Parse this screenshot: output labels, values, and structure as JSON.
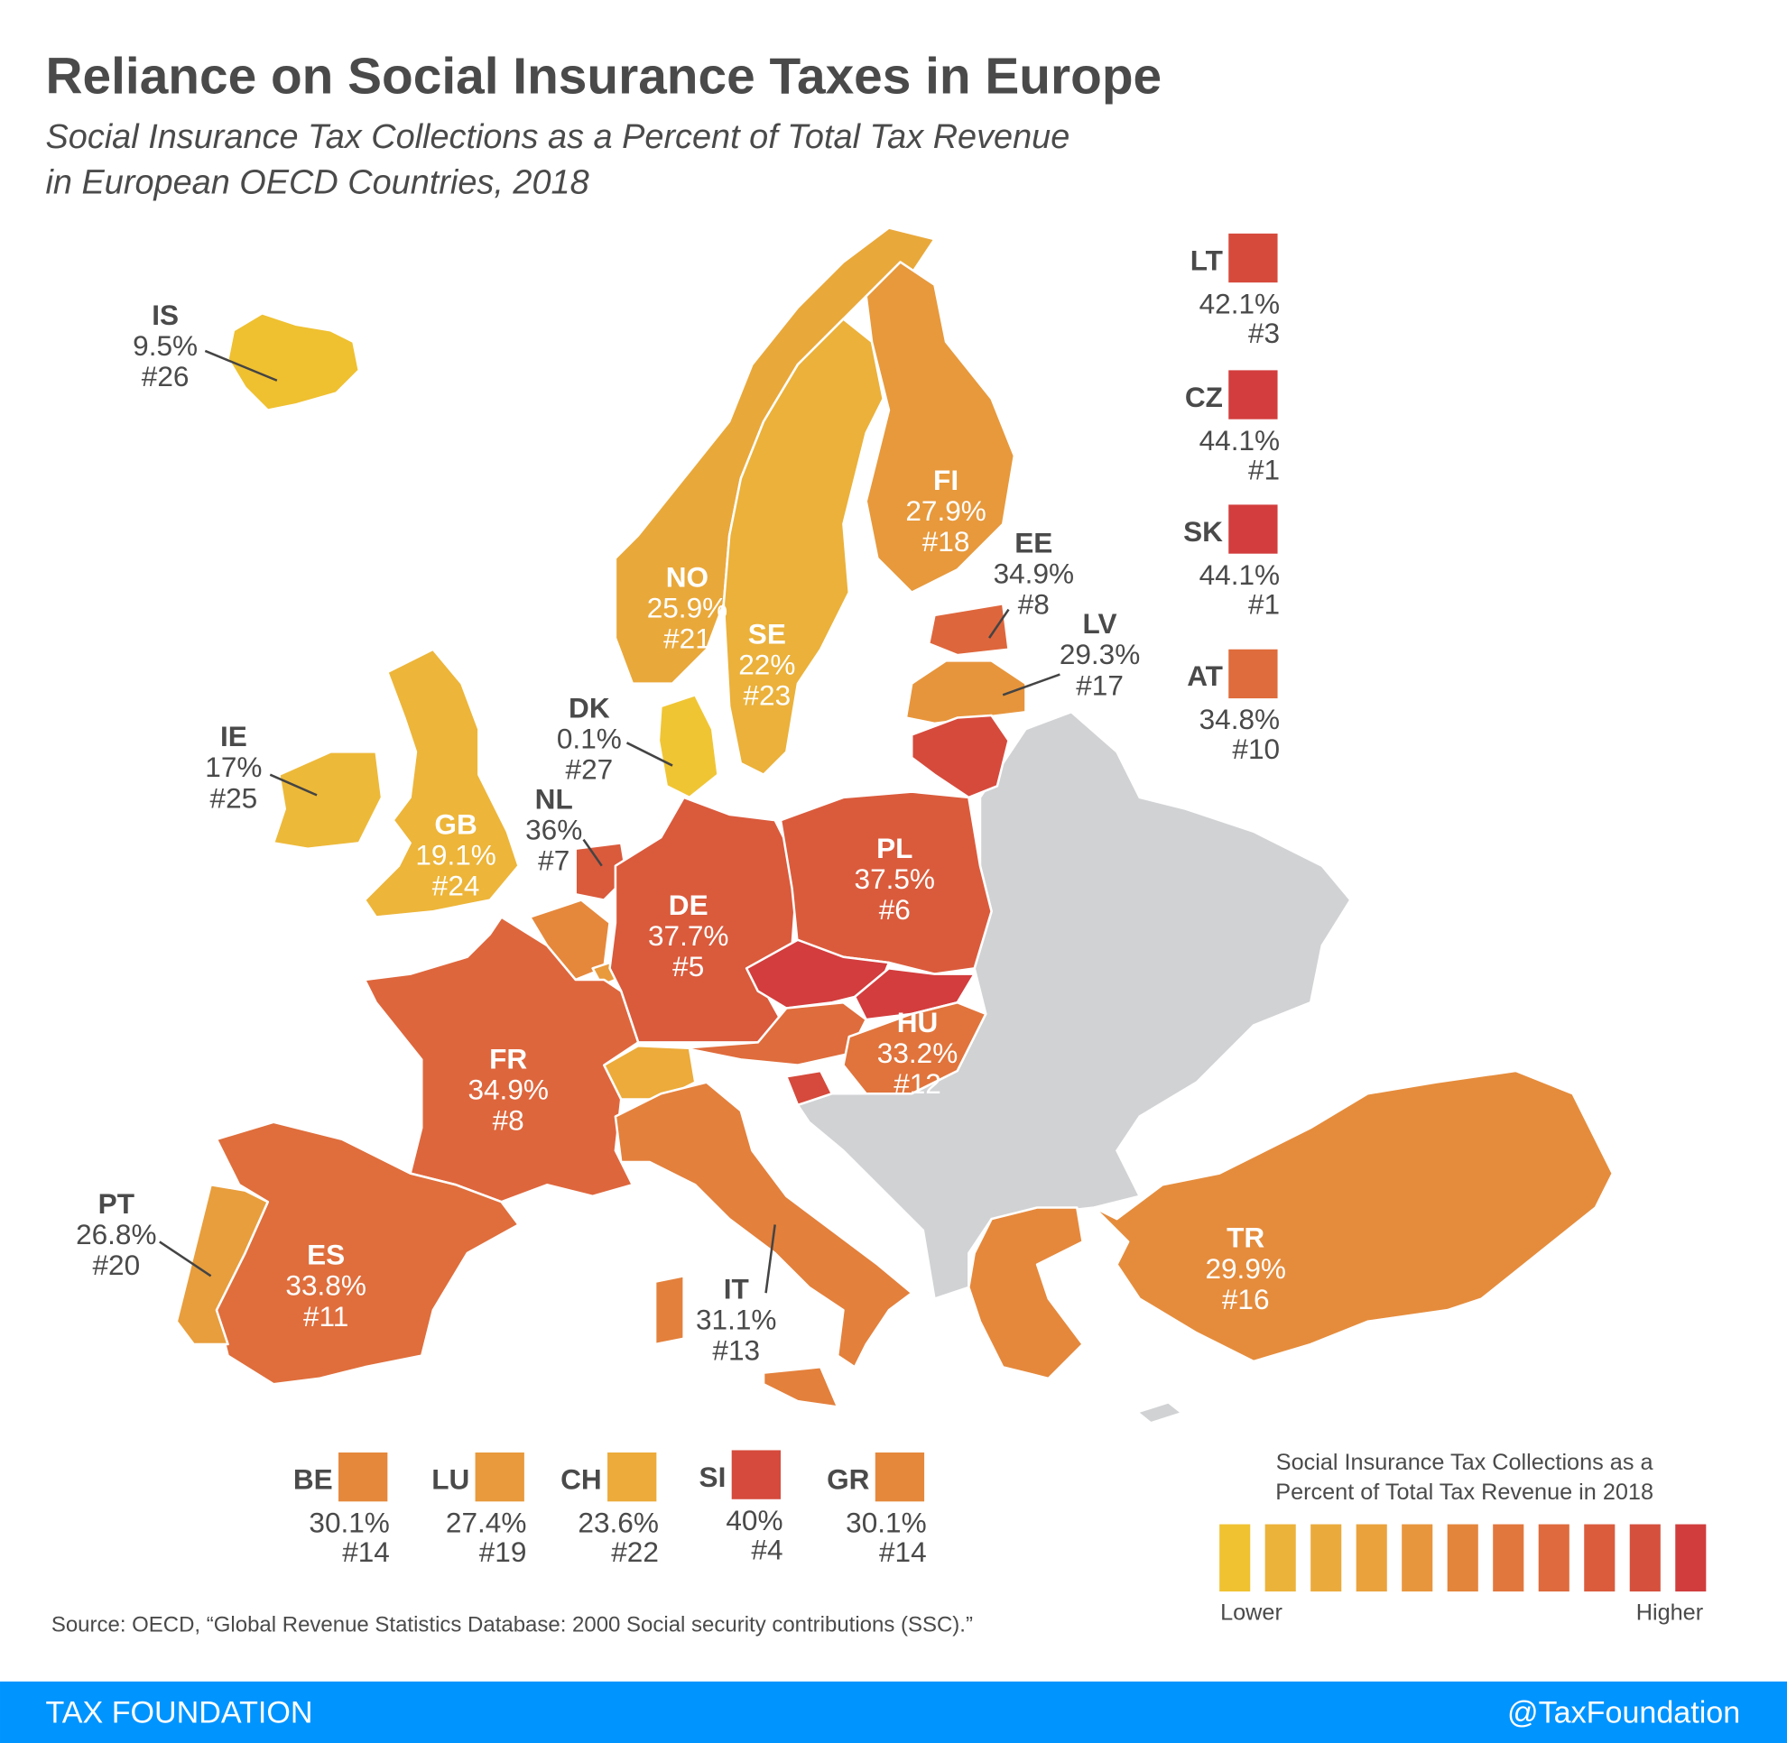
{
  "header": {
    "title": "Reliance on Social Insurance Taxes in Europe",
    "subtitle_line1": "Social Insurance Tax Collections as a Percent of Total Tax Revenue",
    "subtitle_line2": "in European OECD Countries, 2018"
  },
  "colors": {
    "no_data": "#d1d2d4",
    "footer": "#0094ff",
    "scale": [
      "#f0c232",
      "#ecb33a",
      "#ebab3c",
      "#eaa23d",
      "#e8963d",
      "#e4853c",
      "#e2773d",
      "#de6a3d",
      "#da5c3d",
      "#d5503d",
      "#d13d3d"
    ]
  },
  "countries": {
    "IS": {
      "code": "IS",
      "value": "9.5%",
      "rank": "#26",
      "color": "#efc030"
    },
    "NO": {
      "code": "NO",
      "value": "25.9%",
      "rank": "#21",
      "color": "#e9a83a"
    },
    "SE": {
      "code": "SE",
      "value": "22%",
      "rank": "#23",
      "color": "#ebb13a"
    },
    "FI": {
      "code": "FI",
      "value": "27.9%",
      "rank": "#18",
      "color": "#e7993c"
    },
    "EE": {
      "code": "EE",
      "value": "34.9%",
      "rank": "#8",
      "color": "#de663c"
    },
    "LV": {
      "code": "LV",
      "value": "29.3%",
      "rank": "#17",
      "color": "#e7953c"
    },
    "LT": {
      "code": "LT",
      "value": "42.1%",
      "rank": "#3",
      "color": "#d64a3c"
    },
    "DK": {
      "code": "DK",
      "value": "0.1%",
      "rank": "#27",
      "color": "#f0c534"
    },
    "IE": {
      "code": "IE",
      "value": "17%",
      "rank": "#25",
      "color": "#edb939"
    },
    "GB": {
      "code": "GB",
      "value": "19.1%",
      "rank": "#24",
      "color": "#edb539"
    },
    "NL": {
      "code": "NL",
      "value": "36%",
      "rank": "#7",
      "color": "#da5a3c"
    },
    "BE": {
      "code": "BE",
      "value": "30.1%",
      "rank": "#14",
      "color": "#e5883c"
    },
    "LU": {
      "code": "LU",
      "value": "27.4%",
      "rank": "#19",
      "color": "#e89a3c"
    },
    "DE": {
      "code": "DE",
      "value": "37.7%",
      "rank": "#5",
      "color": "#da5a3c"
    },
    "PL": {
      "code": "PL",
      "value": "37.5%",
      "rank": "#6",
      "color": "#da5b3c"
    },
    "CZ": {
      "code": "CZ",
      "value": "44.1%",
      "rank": "#1",
      "color": "#d33d3d"
    },
    "SK": {
      "code": "SK",
      "value": "44.1%",
      "rank": "#1",
      "color": "#d33d3d"
    },
    "AT": {
      "code": "AT",
      "value": "34.8%",
      "rank": "#10",
      "color": "#df6c3c"
    },
    "HU": {
      "code": "HU",
      "value": "33.2%",
      "rank": "#12",
      "color": "#e0743c"
    },
    "SI": {
      "code": "SI",
      "value": "40%",
      "rank": "#4",
      "color": "#d54a3c"
    },
    "CH": {
      "code": "CH",
      "value": "23.6%",
      "rank": "#22",
      "color": "#ecab3a"
    },
    "FR": {
      "code": "FR",
      "value": "34.9%",
      "rank": "#8",
      "color": "#de663c"
    },
    "ES": {
      "code": "ES",
      "value": "33.8%",
      "rank": "#11",
      "color": "#df6e3c"
    },
    "PT": {
      "code": "PT",
      "value": "26.8%",
      "rank": "#20",
      "color": "#e89e3c"
    },
    "IT": {
      "code": "IT",
      "value": "31.1%",
      "rank": "#13",
      "color": "#e3803c"
    },
    "GR": {
      "code": "GR",
      "value": "30.1%",
      "rank": "#14",
      "color": "#e5883c"
    },
    "TR": {
      "code": "TR",
      "value": "29.9%",
      "rank": "#16",
      "color": "#e58c3c"
    }
  },
  "legend": {
    "title_line1": "Social Insurance Tax Collections as a",
    "title_line2": "Percent of Total Tax Revenue in 2018",
    "low_label": "Lower",
    "high_label": "Higher"
  },
  "source": "Source: OECD, “Global Revenue Statistics Database: 2000 Social security contributions (SSC).”",
  "footer": {
    "brand": "TAX FOUNDATION",
    "handle": "@TaxFoundation"
  }
}
